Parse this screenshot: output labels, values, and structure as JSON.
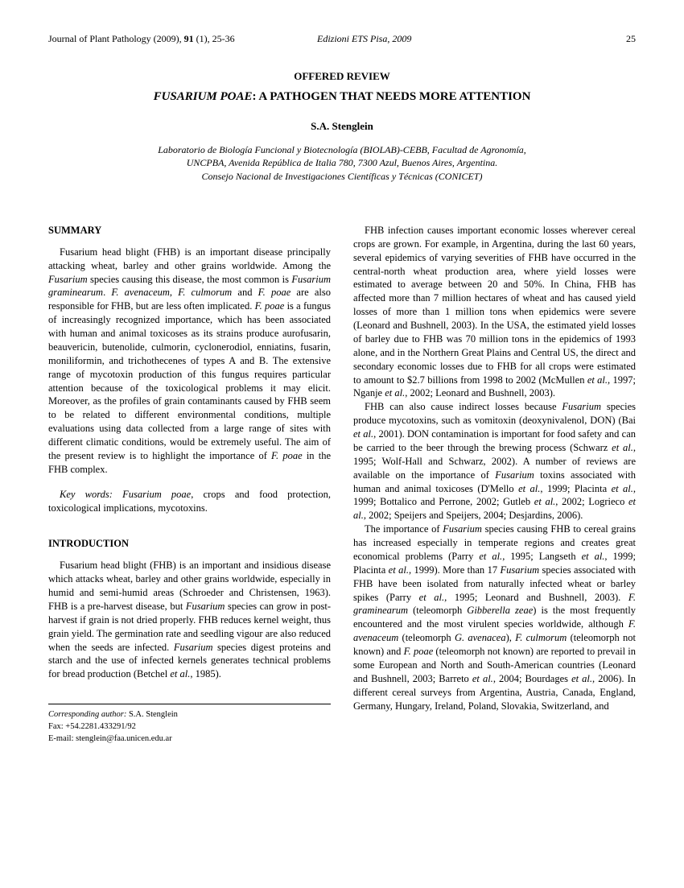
{
  "header": {
    "journal": "Journal of Plant Pathology (2009), ",
    "volume": "91",
    "issue": " (1), 25-36",
    "publisher": "Edizioni ETS Pisa, 2009",
    "page": "25"
  },
  "review_label": "OFFERED REVIEW",
  "title_italic": "FUSARIUM POAE",
  "title_rest": ": A PATHOGEN THAT NEEDS MORE ATTENTION",
  "author": "S.A. Stenglein",
  "affiliation_line1": "Laboratorio de Biología Funcional y Biotecnología (BIOLAB)-CEBB, Facultad de Agronomía,",
  "affiliation_line2": "UNCPBA, Avenida República de Italia 780, 7300 Azul, Buenos Aires, Argentina.",
  "affiliation_line3": "Consejo Nacional de Investigaciones Científicas y Técnicas (CONICET)",
  "summary_heading": "SUMMARY",
  "summary_text": "Fusarium head blight (FHB) is an important disease principally attacking wheat, barley and other grains worldwide. Among the Fusarium species causing this disease, the most common is Fusarium graminearum. F. avenaceum, F. culmorum and F. poae are also responsible for FHB, but are less often implicated. F. poae is a fungus of increasingly recognized importance, which has been associated with human and animal toxicoses as its strains produce aurofusarin, beauvericin, butenolide, culmorin, cyclonerodiol, enniatins, fusarin, moniliformin, and trichothecenes of types A and B. The extensive range of mycotoxin production of this fungus requires particular attention because of the toxicological problems it may elicit. Moreover, as the profiles of grain contaminants caused by FHB seem to be related to different environmental conditions, multiple evaluations using data collected from a large range of sites with different climatic conditions, would be extremely useful. The aim of the present review is to highlight the importance of F. poae in the FHB complex.",
  "keywords_label": "Key words: Fusarium poae",
  "keywords_rest": ", crops and food protection, toxicological implications, mycotoxins.",
  "intro_heading": "INTRODUCTION",
  "intro_text": "Fusarium head blight (FHB) is an important and insidious disease which attacks wheat, barley and other grains worldwide, especially in humid and semi-humid areas (Schroeder and Christensen, 1963). FHB is a pre-harvest disease, but Fusarium species can grow in post-harvest if grain is not dried properly. FHB reduces kernel weight, thus grain yield. The germination rate and seedling vigour are also reduced when the seeds are infected. Fusarium species digest proteins and starch and the use of infected kernels generates technical problems for bread production (Betchel et al., 1985).",
  "corr": {
    "label": "Corresponding author:",
    "name": " S.A. Stenglein",
    "fax": "Fax: +54.2281.433291/92",
    "email": "E-mail: stenglein@faa.unicen.edu.ar"
  },
  "col2_p1": "FHB infection causes important economic losses wherever cereal crops are grown. For example, in Argentina, during the last 60 years, several epidemics of varying severities of FHB have occurred in the central-north wheat production area, where yield losses were estimated to average between 20 and 50%. In China, FHB has affected more than 7 million hectares of wheat and has caused yield losses of more than 1 million tons when epidemics were severe (Leonard and Bushnell, 2003). In the USA, the estimated yield losses of barley due to FHB was 70 million tons in the epidemics of 1993 alone, and in the Northern Great Plains and Central US, the direct and secondary economic losses due to FHB for all crops were estimated to amount to $2.7 billions from 1998 to 2002 (McMullen et al., 1997; Nganje et al., 2002; Leonard and Bushnell, 2003).",
  "col2_p2": "FHB can also cause indirect losses because Fusarium species produce mycotoxins, such as vomitoxin (deoxynivalenol, DON) (Bai et al., 2001). DON contamination is important for food safety and can be carried to the beer through the brewing process (Schwarz et al., 1995; Wolf-Hall and Schwarz, 2002). A number of reviews are available on the importance of Fusarium toxins associated with human and animal toxicoses (D'Mello et al., 1999; Placinta et al., 1999; Bottalico and Perrone, 2002; Gutleb et al., 2002; Logrieco et al., 2002; Speijers and Speijers, 2004; Desjardins, 2006).",
  "col2_p3": "The importance of Fusarium species causing FHB to cereal grains has increased especially in temperate regions and creates great economical problems (Parry et al., 1995; Langseth et al., 1999; Placinta et al., 1999). More than 17 Fusarium species associated with FHB have been isolated from naturally infected wheat or barley spikes (Parry et al., 1995; Leonard and Bushnell, 2003). F. graminearum (teleomorph Gibberella zeae) is the most frequently encountered and the most virulent species worldwide, although F. avenaceum (teleomorph G. avenacea), F. culmorum (teleomorph not known) and F. poae (teleomorph not known) are reported to prevail in some European and North and South-American countries (Leonard and Bushnell, 2003; Barreto et al., 2004; Bourdages et al., 2006). In different cereal surveys from Argentina, Austria, Canada, England, Germany, Hungary, Ireland, Poland, Slovakia, Switzerland, and"
}
